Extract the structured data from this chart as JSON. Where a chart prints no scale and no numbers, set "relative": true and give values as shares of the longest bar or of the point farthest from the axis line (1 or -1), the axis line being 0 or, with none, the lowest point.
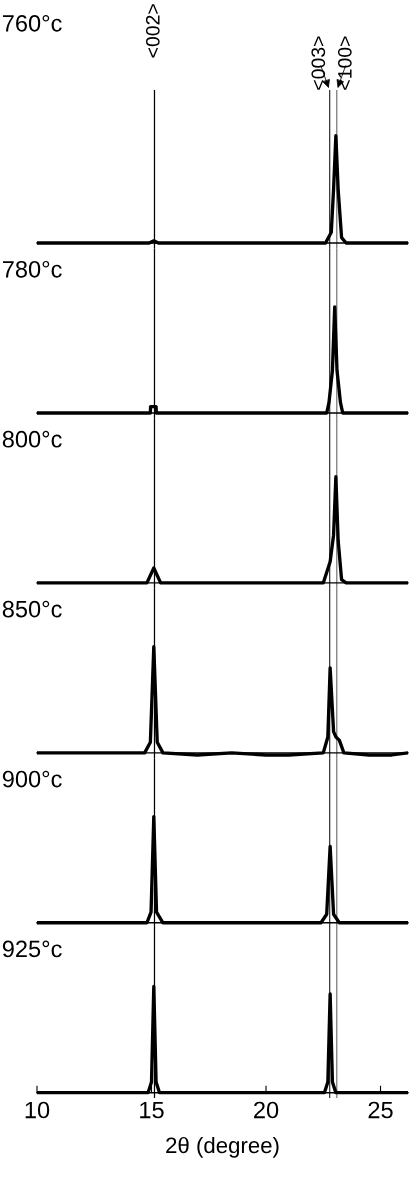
{
  "chart_data": [
    {
      "type": "line",
      "title": "760°c",
      "relative": true,
      "xlim": [
        10,
        26.2
      ],
      "tick_labels": false,
      "x": [
        10,
        14.9,
        15.1,
        15.3,
        22.6,
        22.85,
        22.95,
        23.05,
        23.15,
        23.3,
        23.5,
        26.2
      ],
      "series": [
        {
          "color": "#000000",
          "values": [
            0,
            0,
            0.02,
            0,
            0,
            0.1,
            0.5,
            1,
            0.5,
            0.05,
            0,
            0
          ]
        }
      ],
      "annotations": [
        "<002>",
        "<003>",
        "<100>"
      ],
      "ref_lines": [
        {
          "axis": "x",
          "value": 15.13,
          "color": "#000000"
        },
        {
          "axis": "x",
          "value": 22.78,
          "color": "#333333"
        },
        {
          "axis": "x",
          "value": 23.09,
          "color": "#777777"
        }
      ]
    },
    {
      "type": "line",
      "title": "780°c",
      "relative": true,
      "xlim": [
        10,
        26.2
      ],
      "tick_labels": false,
      "x": [
        10,
        14.95,
        14.96,
        15.2,
        15.21,
        22.65,
        22.75,
        22.9,
        23.0,
        23.1,
        23.25,
        23.35,
        26.2
      ],
      "series": [
        {
          "color": "#000000",
          "values": [
            0,
            0,
            0.06,
            0.06,
            0,
            0,
            0.1,
            0.4,
            1,
            0.4,
            0.1,
            0,
            0
          ]
        }
      ],
      "ref_lines": [
        {
          "axis": "x",
          "value": 15.13,
          "color": "#000000"
        },
        {
          "axis": "x",
          "value": 22.78,
          "color": "#333333"
        },
        {
          "axis": "x",
          "value": 23.09,
          "color": "#777777"
        }
      ]
    },
    {
      "type": "line",
      "title": "800°c",
      "relative": true,
      "xlim": [
        10,
        26.2
      ],
      "tick_labels": false,
      "x": [
        10,
        14.8,
        15.1,
        15.4,
        22.5,
        22.8,
        22.95,
        23.05,
        23.15,
        23.3,
        23.5,
        26.2
      ],
      "series": [
        {
          "color": "#000000",
          "values": [
            0,
            0,
            0.14,
            0,
            0,
            0.2,
            0.45,
            1,
            0.4,
            0.03,
            0,
            0
          ]
        }
      ],
      "ref_lines": [
        {
          "axis": "x",
          "value": 15.13,
          "color": "#000000"
        },
        {
          "axis": "x",
          "value": 22.78,
          "color": "#333333"
        },
        {
          "axis": "x",
          "value": 23.09,
          "color": "#777777"
        }
      ]
    },
    {
      "type": "line",
      "title": "850°c",
      "relative": true,
      "xlim": [
        10,
        26.2
      ],
      "tick_labels": false,
      "x": [
        10,
        14.7,
        14.95,
        15.1,
        15.25,
        15.5,
        17,
        18.5,
        20,
        21,
        22.5,
        22.7,
        22.8,
        22.95,
        23.05,
        23.2,
        23.4,
        24.5,
        25.5,
        26.2
      ],
      "series": [
        {
          "color": "#000000",
          "values": [
            0,
            0,
            0.1,
            1,
            0.1,
            0,
            -0.02,
            0,
            -0.02,
            -0.02,
            0,
            0.15,
            0.8,
            0.2,
            0.15,
            0.12,
            0,
            -0.02,
            -0.02,
            0
          ]
        }
      ],
      "ref_lines": [
        {
          "axis": "x",
          "value": 15.13,
          "color": "#000000"
        },
        {
          "axis": "x",
          "value": 22.78,
          "color": "#333333"
        },
        {
          "axis": "x",
          "value": 23.09,
          "color": "#777777"
        }
      ]
    },
    {
      "type": "line",
      "title": "900°c",
      "relative": true,
      "xlim": [
        10,
        26.2
      ],
      "tick_labels": false,
      "x": [
        10,
        14.8,
        14.98,
        15.1,
        15.22,
        15.5,
        22.4,
        22.65,
        22.8,
        22.95,
        23.2,
        26.2
      ],
      "series": [
        {
          "color": "#000000",
          "values": [
            0,
            0,
            0.1,
            1,
            0.1,
            0,
            0,
            0.08,
            0.72,
            0.08,
            0,
            0
          ]
        }
      ],
      "ref_lines": [
        {
          "axis": "x",
          "value": 15.13,
          "color": "#000000"
        },
        {
          "axis": "x",
          "value": 22.78,
          "color": "#333333"
        },
        {
          "axis": "x",
          "value": 23.09,
          "color": "#777777"
        }
      ]
    },
    {
      "type": "line",
      "title": "925°c",
      "relative": true,
      "xlim": [
        10,
        26.2
      ],
      "xticks": [
        10,
        15,
        20,
        25
      ],
      "tick_labels": "x",
      "xlabel": "2θ (degree)",
      "x": [
        10,
        14.85,
        15.0,
        15.1,
        15.2,
        15.35,
        22.55,
        22.7,
        22.8,
        22.9,
        23.05,
        26.2
      ],
      "series": [
        {
          "color": "#000000",
          "values": [
            0,
            0,
            0.1,
            1,
            0.1,
            0,
            0,
            0.1,
            0.93,
            0.1,
            0,
            0
          ]
        }
      ],
      "ref_lines": [
        {
          "axis": "x",
          "value": 15.13,
          "color": "#000000"
        },
        {
          "axis": "x",
          "value": 22.78,
          "color": "#333333"
        },
        {
          "axis": "x",
          "value": 23.09,
          "color": "#777777"
        }
      ]
    }
  ]
}
